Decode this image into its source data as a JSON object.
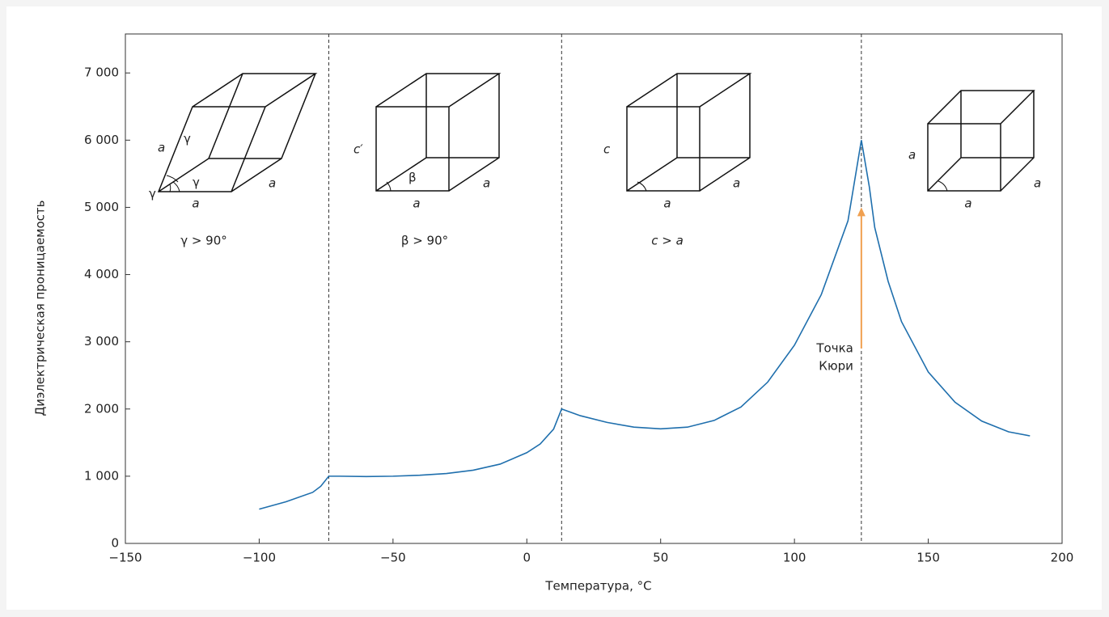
{
  "chart_data": {
    "type": "line",
    "xlabel": "Температура, °C",
    "ylabel": "Диэлектрическая проницаемость",
    "xlim": [
      -150,
      200
    ],
    "ylim": [
      0,
      7580
    ],
    "xticks": [
      {
        "value": -150,
        "label": "−150"
      },
      {
        "value": -100,
        "label": "−100"
      },
      {
        "value": -50,
        "label": "−50"
      },
      0,
      50,
      100,
      150,
      200
    ],
    "yticks": [
      0,
      {
        "value": 1000,
        "label": "1 000"
      },
      {
        "value": 2000,
        "label": "2 000"
      },
      {
        "value": 3000,
        "label": "3 000"
      },
      {
        "value": 4000,
        "label": "4 000"
      },
      {
        "value": 5000,
        "label": "5 000"
      },
      {
        "value": 6000,
        "label": "6 000"
      },
      {
        "value": 7000,
        "label": "7 000"
      }
    ],
    "color": "#1f6fad",
    "x": [
      -100,
      -90,
      -80,
      -77,
      -74,
      -70,
      -60,
      -50,
      -40,
      -30,
      -20,
      -10,
      0,
      5,
      10,
      13,
      20,
      30,
      40,
      50,
      60,
      70,
      80,
      90,
      100,
      110,
      120,
      125,
      128,
      130,
      135,
      140,
      150,
      160,
      170,
      180,
      188
    ],
    "values": [
      510,
      620,
      760,
      850,
      1000,
      1000,
      995,
      1000,
      1015,
      1040,
      1090,
      1180,
      1350,
      1480,
      1700,
      2000,
      1900,
      1800,
      1730,
      1705,
      1730,
      1830,
      2030,
      2400,
      2950,
      3700,
      4800,
      6000,
      5300,
      4700,
      3900,
      3300,
      2550,
      2100,
      1820,
      1660,
      1600
    ],
    "phase_boundaries": [
      -74,
      13,
      125
    ],
    "curie_arrow": {
      "x": 125,
      "y_from": 2900,
      "y_to": 5000,
      "color": "#f0a050",
      "label": [
        "Точка",
        "Кюри"
      ]
    },
    "phases": [
      {
        "condition": "γ > 90°",
        "labels": [
          "a",
          "γ",
          "γ",
          "γ",
          "a",
          "a"
        ]
      },
      {
        "condition": "β > 90°",
        "labels": [
          "c′",
          "β",
          "a",
          "a"
        ]
      },
      {
        "condition": "c > a",
        "labels": [
          "c",
          "a",
          "a"
        ]
      },
      {
        "labels": [
          "a",
          "a",
          "a"
        ]
      }
    ]
  }
}
